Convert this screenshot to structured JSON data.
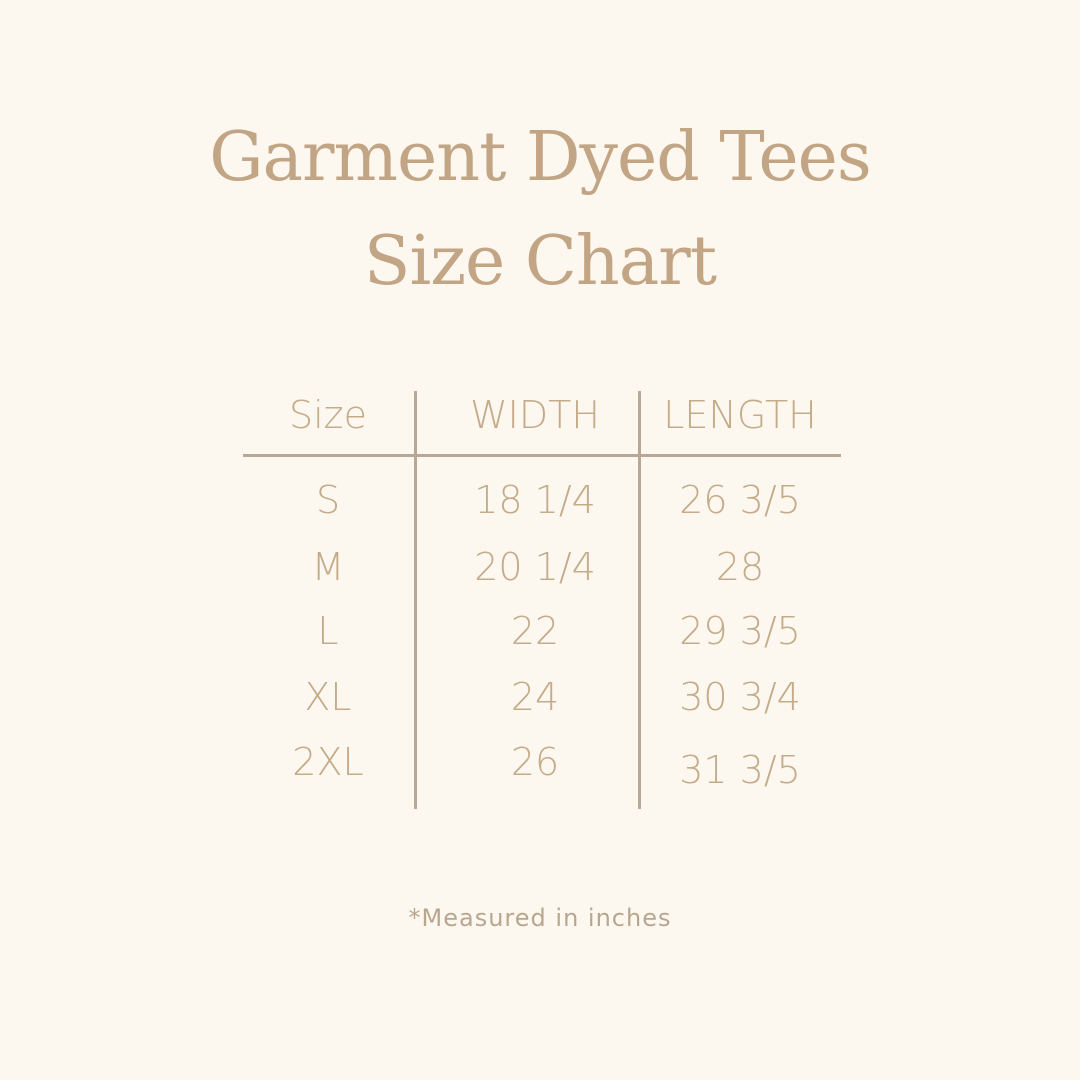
{
  "title": {
    "line1": "Garment Dyed Tees",
    "line2": "Size Chart"
  },
  "table": {
    "headers": [
      "Size",
      "WIDTH",
      "LENGTH"
    ],
    "rows": [
      [
        "S",
        "18 1/4",
        "26 3/5"
      ],
      [
        "M",
        "20 1/4",
        "28"
      ],
      [
        "L",
        "22",
        "29 3/5"
      ],
      [
        "XL",
        "24",
        "30 3/4"
      ],
      [
        "2XL",
        "26",
        "31 3/5"
      ]
    ]
  },
  "footnote": "*Measured in inches",
  "colors": {
    "background": "#fdf8ef",
    "text": "#c4ab8a",
    "lines": "#b8a997"
  }
}
